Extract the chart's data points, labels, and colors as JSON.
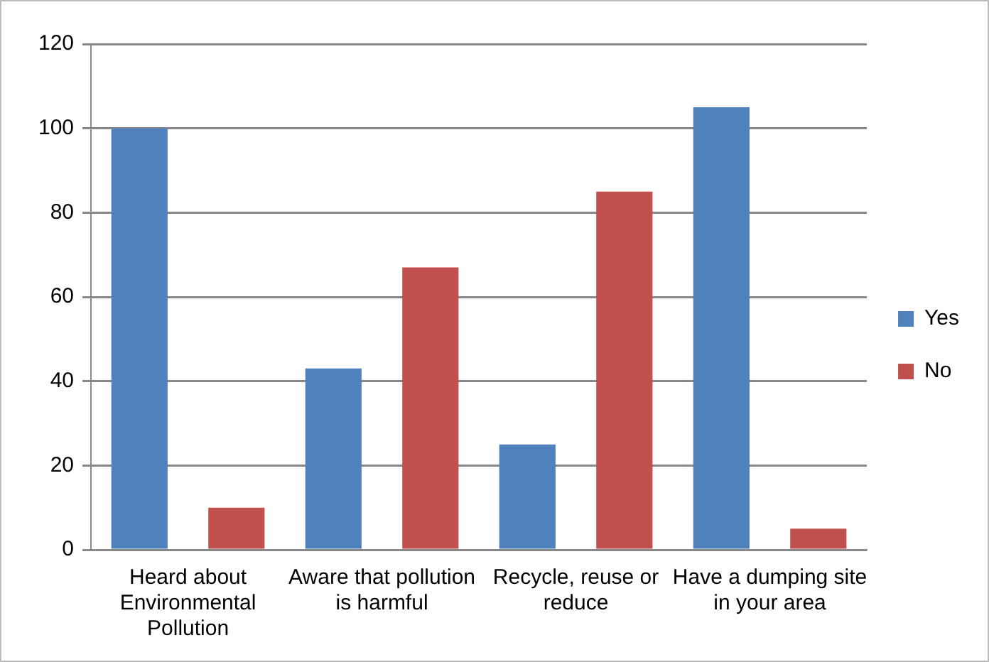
{
  "chart_data": {
    "type": "bar",
    "categories": [
      "Heard about Environmental Pollution",
      "Aware that pollution is harmful",
      "Recycle, reuse or reduce",
      "Have a dumping site in your area"
    ],
    "series": [
      {
        "name": "Yes",
        "color": "#4f81bd",
        "values": [
          100,
          43,
          25,
          105
        ]
      },
      {
        "name": "No",
        "color": "#c0504d",
        "values": [
          10,
          67,
          85,
          5
        ]
      }
    ],
    "ylim": [
      0,
      120
    ],
    "yticks": [
      0,
      20,
      40,
      60,
      80,
      100,
      120
    ],
    "grid": "y",
    "legend": "right"
  }
}
